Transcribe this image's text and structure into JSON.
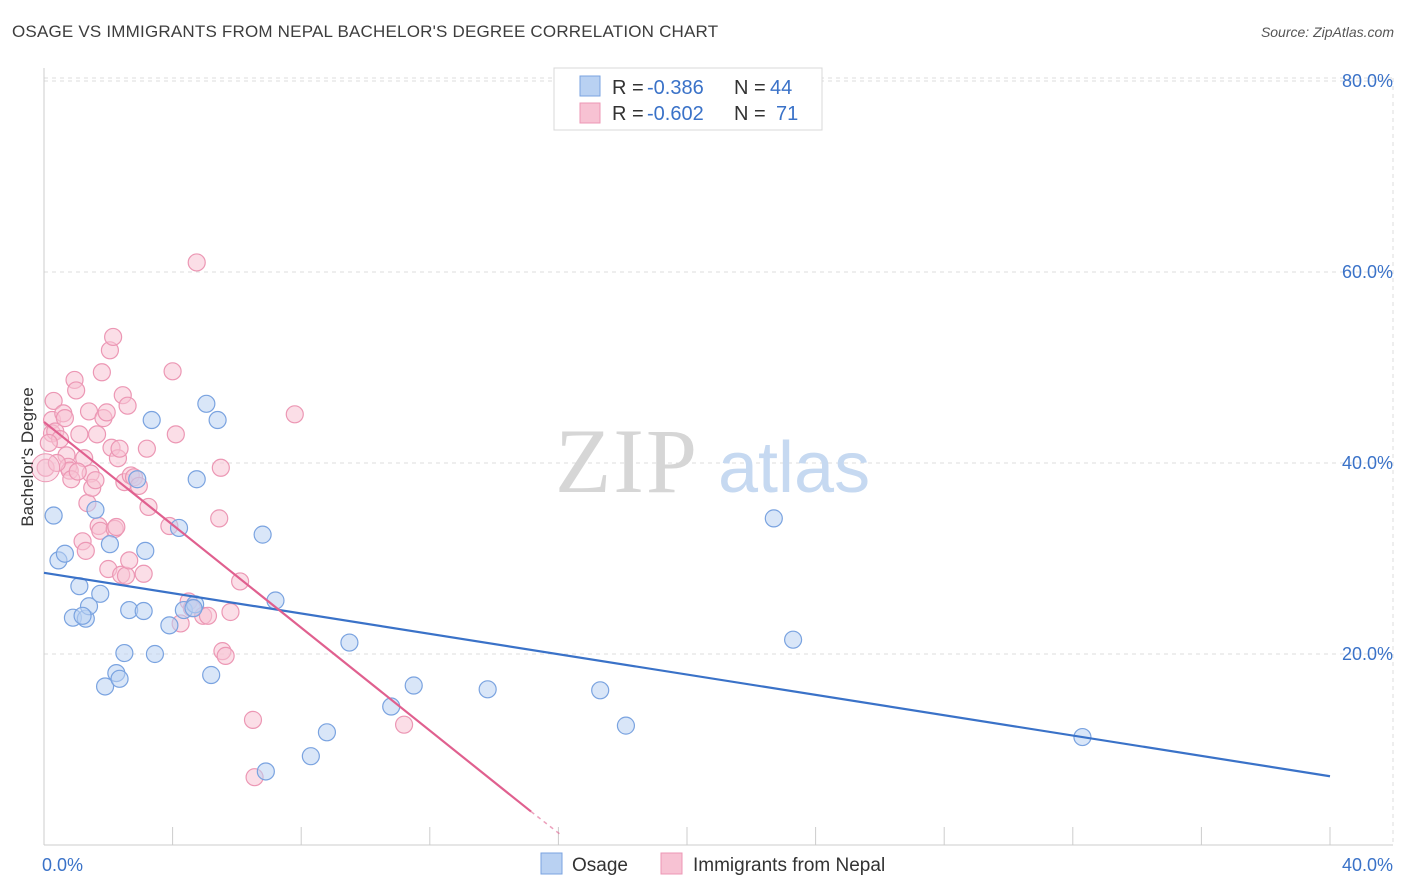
{
  "title": "OSAGE VS IMMIGRANTS FROM NEPAL BACHELOR'S DEGREE CORRELATION CHART",
  "source": "Source: ZipAtlas.com",
  "watermark": {
    "zip": "ZIP",
    "atlas": "atlas"
  },
  "colors": {
    "blue": "#3a72c8",
    "blue_fill": "#b9d1f2",
    "blue_stroke": "#7aa3e0",
    "pink": "#e0608f",
    "pink_fill": "#f7c2d3",
    "pink_stroke": "#ec97b4",
    "grid": "#dddddd",
    "axis_text": "#3a72c8"
  },
  "stats": {
    "series1": {
      "r_label": "R =",
      "r_value": "-0.386",
      "n_label": "N =",
      "n_value": "44"
    },
    "series2": {
      "r_label": "R =",
      "r_value": "-0.602",
      "n_label": "N =",
      "n_value": "71"
    }
  },
  "chart_data": {
    "type": "scatter",
    "title": "OSAGE VS IMMIGRANTS FROM NEPAL BACHELOR'S DEGREE CORRELATION CHART",
    "xlabel": "",
    "ylabel": "Bachelor's Degree",
    "xlim": [
      0,
      40
    ],
    "ylim": [
      0,
      83
    ],
    "x_tick_labels": [
      {
        "value": 0,
        "label": "0.0%"
      },
      {
        "value": 40,
        "label": "40.0%"
      }
    ],
    "y_tick_labels": [
      {
        "value": 20,
        "label": "20.0%"
      },
      {
        "value": 40,
        "label": "40.0%"
      },
      {
        "value": 60,
        "label": "60.0%"
      },
      {
        "value": 80,
        "label": "80.0%"
      }
    ],
    "y_gridlines": [
      20,
      40,
      60,
      80
    ],
    "legend_position": "bottom-center",
    "series": [
      {
        "name": "Osage",
        "color": "blue",
        "points": [
          [
            0.3,
            34.5
          ],
          [
            0.45,
            29.8
          ],
          [
            0.65,
            30.5
          ],
          [
            0.9,
            23.8
          ],
          [
            1.1,
            27.1
          ],
          [
            1.3,
            23.7
          ],
          [
            1.4,
            25
          ],
          [
            1.6,
            35.1
          ],
          [
            1.75,
            26.3
          ],
          [
            1.9,
            16.6
          ],
          [
            2.05,
            31.5
          ],
          [
            2.25,
            18
          ],
          [
            2.35,
            17.4
          ],
          [
            2.5,
            20.1
          ],
          [
            2.65,
            24.6
          ],
          [
            2.9,
            38.3
          ],
          [
            3.1,
            24.5
          ],
          [
            3.15,
            30.8
          ],
          [
            3.35,
            44.5
          ],
          [
            3.45,
            20
          ],
          [
            3.9,
            23
          ],
          [
            4.2,
            33.2
          ],
          [
            4.35,
            24.6
          ],
          [
            4.7,
            25.2
          ],
          [
            4.75,
            38.3
          ],
          [
            5.05,
            46.2
          ],
          [
            5.2,
            17.8
          ],
          [
            5.4,
            44.5
          ],
          [
            6.8,
            32.5
          ],
          [
            6.9,
            7.7
          ],
          [
            7.2,
            25.6
          ],
          [
            8.3,
            9.3
          ],
          [
            8.8,
            11.8
          ],
          [
            9.5,
            21.2
          ],
          [
            10.8,
            14.5
          ],
          [
            11.5,
            16.7
          ],
          [
            13.8,
            16.3
          ],
          [
            17.3,
            16.2
          ],
          [
            18.1,
            12.5
          ],
          [
            22.7,
            34.2
          ],
          [
            23.3,
            21.5
          ],
          [
            32.3,
            11.3
          ],
          [
            4.65,
            24.8
          ],
          [
            1.2,
            24
          ]
        ]
      },
      {
        "name": "Immigrants from Nepal",
        "color": "pink",
        "points": [
          [
            0.05,
            39.5
          ],
          [
            0.25,
            44.5
          ],
          [
            0.25,
            43.1
          ],
          [
            0.3,
            46.5
          ],
          [
            0.35,
            43.3
          ],
          [
            0.5,
            42.5
          ],
          [
            0.6,
            45.2
          ],
          [
            0.65,
            44.7
          ],
          [
            0.7,
            40.8
          ],
          [
            0.75,
            39.6
          ],
          [
            0.8,
            39.2
          ],
          [
            0.85,
            38.3
          ],
          [
            0.95,
            48.7
          ],
          [
            1.0,
            47.6
          ],
          [
            1.1,
            43
          ],
          [
            1.2,
            31.8
          ],
          [
            1.25,
            40.5
          ],
          [
            1.3,
            30.8
          ],
          [
            1.35,
            35.8
          ],
          [
            1.4,
            45.4
          ],
          [
            1.45,
            38.9
          ],
          [
            1.5,
            37.4
          ],
          [
            1.6,
            38.2
          ],
          [
            1.65,
            43
          ],
          [
            1.7,
            33.4
          ],
          [
            1.75,
            32.9
          ],
          [
            1.8,
            49.5
          ],
          [
            1.85,
            44.7
          ],
          [
            1.95,
            45.3
          ],
          [
            2.0,
            28.9
          ],
          [
            2.05,
            51.8
          ],
          [
            2.1,
            41.6
          ],
          [
            2.15,
            53.2
          ],
          [
            2.2,
            33.1
          ],
          [
            2.3,
            40.5
          ],
          [
            2.35,
            41.5
          ],
          [
            2.4,
            28.3
          ],
          [
            2.45,
            47.1
          ],
          [
            2.5,
            38
          ],
          [
            2.55,
            28.2
          ],
          [
            2.6,
            46
          ],
          [
            2.65,
            29.8
          ],
          [
            2.7,
            38.7
          ],
          [
            2.8,
            38.5
          ],
          [
            2.95,
            37.6
          ],
          [
            3.1,
            28.4
          ],
          [
            3.2,
            41.5
          ],
          [
            3.25,
            35.4
          ],
          [
            3.9,
            33.4
          ],
          [
            4.0,
            49.6
          ],
          [
            4.1,
            43
          ],
          [
            4.25,
            23.2
          ],
          [
            4.5,
            25.5
          ],
          [
            4.6,
            24.8
          ],
          [
            4.75,
            61
          ],
          [
            4.95,
            24
          ],
          [
            5.1,
            24
          ],
          [
            5.45,
            34.2
          ],
          [
            5.5,
            39.5
          ],
          [
            5.55,
            20.3
          ],
          [
            5.65,
            19.8
          ],
          [
            5.8,
            24.4
          ],
          [
            6.1,
            27.6
          ],
          [
            6.5,
            13.1
          ],
          [
            6.55,
            7.1
          ],
          [
            7.8,
            45.1
          ],
          [
            11.2,
            12.6
          ],
          [
            0.15,
            42.1
          ],
          [
            0.4,
            40
          ],
          [
            2.25,
            33.3
          ],
          [
            1.05,
            39.1
          ]
        ]
      }
    ],
    "trend_lines": [
      {
        "series": "Osage",
        "x": [
          0,
          40
        ],
        "y": [
          28.5,
          7.2
        ]
      },
      {
        "series": "Immigrants from Nepal",
        "x": [
          0,
          15.15
        ],
        "y": [
          44.3,
          3.5
        ],
        "dashed_extension_to": [
          16.1,
          1.0
        ]
      }
    ]
  }
}
